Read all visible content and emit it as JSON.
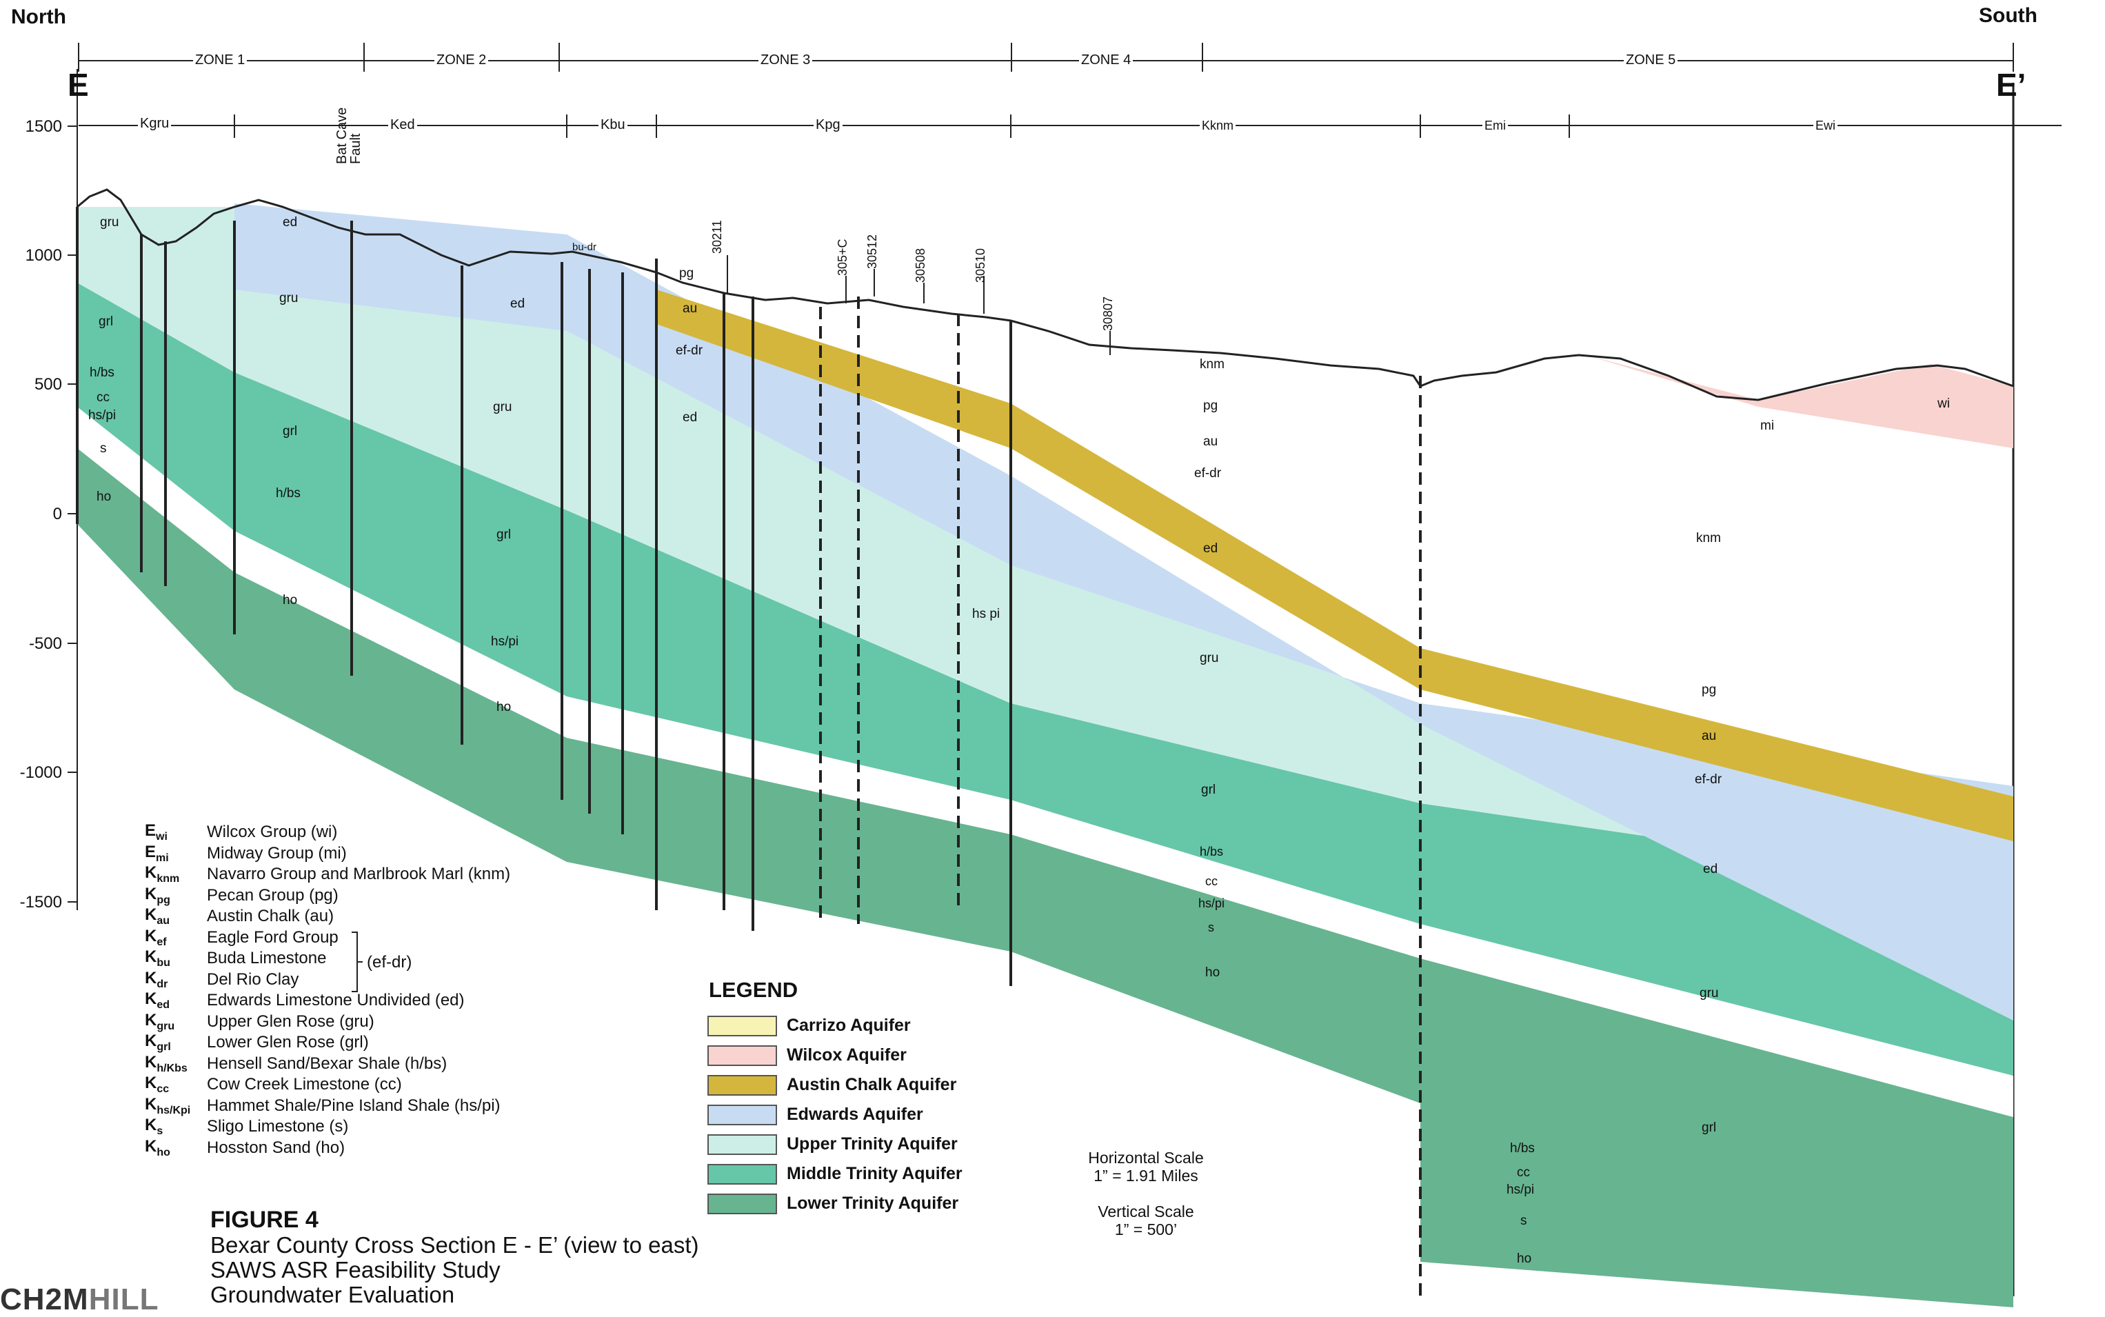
{
  "header": {
    "north_label": "North",
    "south_label": "South",
    "section_start": "E",
    "section_end": "E’",
    "zones": [
      "ZONE 1",
      "ZONE 2",
      "ZONE 3",
      "ZONE 4",
      "ZONE 5"
    ],
    "outcrop_units": [
      "Kgru",
      "Ked",
      "Kbu",
      "Kpg",
      "Kknm",
      "Emi",
      "Ewi"
    ]
  },
  "axis": {
    "ticks": [
      "1500",
      "1000",
      "500",
      "0",
      "-500",
      "-1000",
      "-1500"
    ]
  },
  "annotations": {
    "fault": "Bat Cave Fault",
    "wells": [
      "30211",
      "305+C",
      "30512",
      "30508",
      "30510",
      "30807"
    ]
  },
  "unit_labels": {
    "gru": "gru",
    "grl": "grl",
    "hbs": "h/bs",
    "cc": "cc",
    "hspi": "hs/pi",
    "s": "s",
    "ho": "ho",
    "ed": "ed",
    "pg": "pg",
    "au": "au",
    "efdr": "ef-dr",
    "knm": "knm",
    "mi": "mi",
    "wi": "wi",
    "budr": "bu-dr",
    "hspi_alt": "hs pi"
  },
  "abbreviations": [
    {
      "code": "E",
      "sub": "wi",
      "desc": "Wilcox Group (wi)"
    },
    {
      "code": "E",
      "sub": "mi",
      "desc": "Midway Group (mi)"
    },
    {
      "code": "K",
      "sub": "knm",
      "desc": "Navarro Group and Marlbrook Marl (knm)"
    },
    {
      "code": "K",
      "sub": "pg",
      "desc": "Pecan Group (pg)"
    },
    {
      "code": "K",
      "sub": "au",
      "desc": "Austin Chalk (au)"
    },
    {
      "code": "K",
      "sub": "ef",
      "desc": "Eagle Ford Group"
    },
    {
      "code": "K",
      "sub": "bu",
      "desc": "Buda Limestone"
    },
    {
      "code": "K",
      "sub": "dr",
      "desc": "Del Rio Clay"
    },
    {
      "code": "K",
      "sub": "ed",
      "desc": "Edwards Limestone Undivided (ed)"
    },
    {
      "code": "K",
      "sub": "gru",
      "desc": "Upper Glen Rose (gru)"
    },
    {
      "code": "K",
      "sub": "grl",
      "desc": "Lower Glen Rose (grl)"
    },
    {
      "code": "K",
      "sub": "h/K",
      "sub2": "bs",
      "desc": "Hensell Sand/Bexar Shale (h/bs)"
    },
    {
      "code": "K",
      "sub": "cc",
      "desc": "Cow Creek Limestone (cc)"
    },
    {
      "code": "K",
      "sub": "hs/K",
      "sub2": "pi",
      "desc": "Hammet Shale/Pine Island Shale (hs/pi)"
    },
    {
      "code": "K",
      "sub": "s",
      "desc": "Sligo Limestone (s)"
    },
    {
      "code": "K",
      "sub": "ho",
      "desc": "Hosston Sand (ho)"
    }
  ],
  "efdr_group": "(ef-dr)",
  "legend": {
    "title": "LEGEND",
    "items": [
      {
        "label": "Carrizo Aquifer",
        "color": "#f7f3b5"
      },
      {
        "label": "Wilcox Aquifer",
        "color": "#f8d3d0"
      },
      {
        "label": "Austin Chalk Aquifer",
        "color": "#d4b63c"
      },
      {
        "label": "Edwards Aquifer",
        "color": "#c7dcf3"
      },
      {
        "label": "Upper Trinity Aquifer",
        "color": "#cdeee6"
      },
      {
        "label": "Middle Trinity Aquifer",
        "color": "#66c6a8"
      },
      {
        "label": "Lower Trinity Aquifer",
        "color": "#67b490"
      }
    ]
  },
  "scales": {
    "horizontal_title": "Horizontal Scale",
    "horizontal_value": "1” = 1.91 Miles",
    "vertical_title": "Vertical Scale",
    "vertical_value": "1” = 500’"
  },
  "figure": {
    "number": "FIGURE 4",
    "line1": "Bexar County Cross Section E - E’ (view to east)",
    "line2": "SAWS ASR Feasibility Study",
    "line3": "Groundwater Evaluation"
  },
  "logo": {
    "part1": "CH2M",
    "part2": "HILL"
  }
}
